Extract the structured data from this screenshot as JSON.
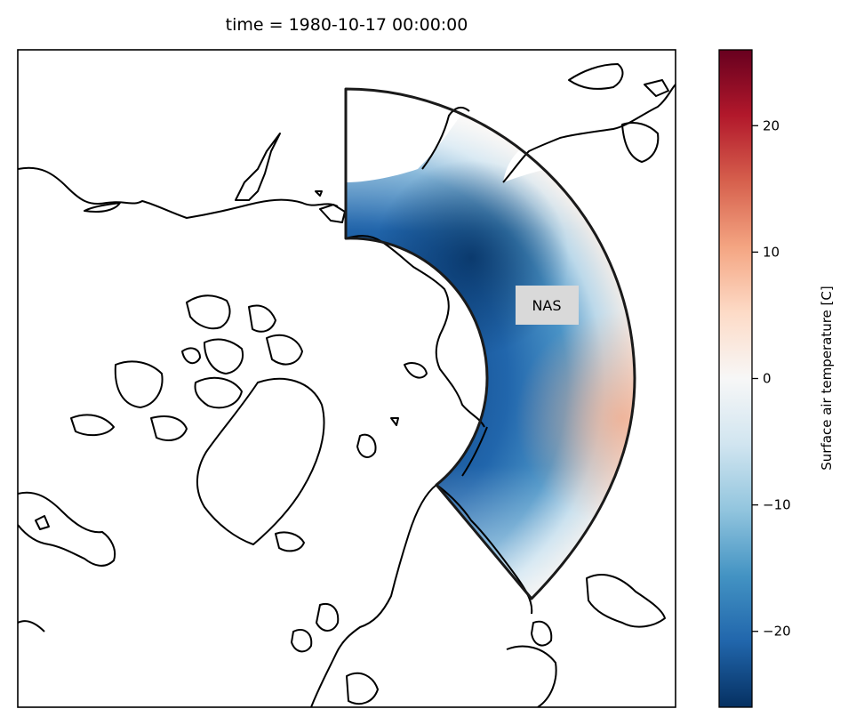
{
  "title": "time = 1980-10-17 00:00:00",
  "region": {
    "label": "NAS"
  },
  "colorbar": {
    "label": "Surface air temperature [C]",
    "vmin": -26,
    "vmax": 26,
    "cmap": "RdBu_r",
    "colors": [
      "#053061",
      "#2166ac",
      "#4393c3",
      "#92c5de",
      "#d1e5f0",
      "#f7f7f7",
      "#fddbc7",
      "#f4a582",
      "#d6604d",
      "#b2182b",
      "#67001f"
    ],
    "ticks": [
      {
        "value": 20,
        "label": "20"
      },
      {
        "value": 10,
        "label": "10"
      },
      {
        "value": 0,
        "label": "0"
      },
      {
        "value": -10,
        "label": "−10"
      },
      {
        "value": -20,
        "label": "−20"
      }
    ]
  }
}
